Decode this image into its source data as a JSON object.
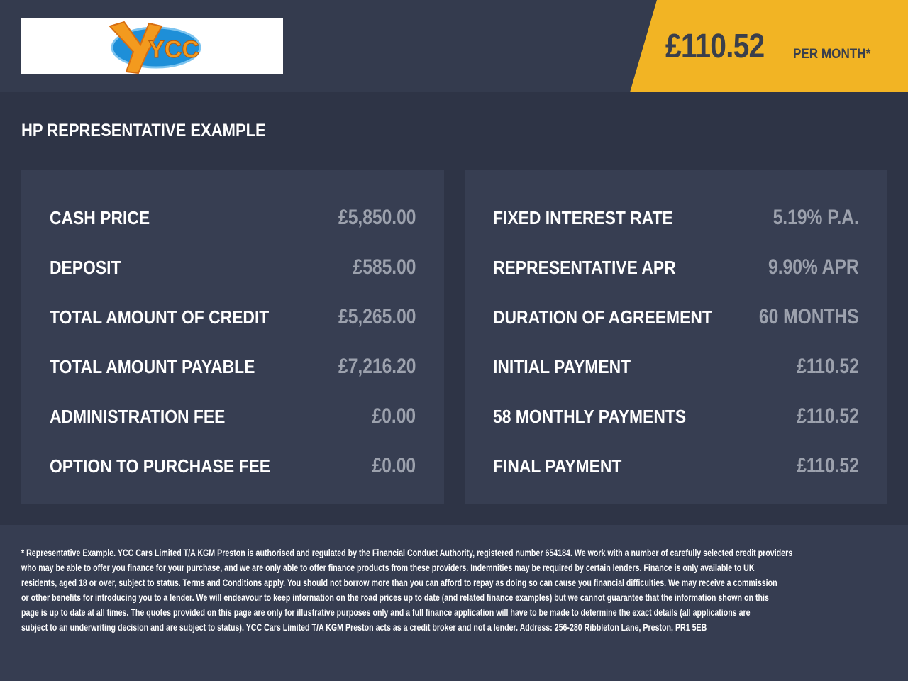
{
  "header": {
    "logo_text": "YCC",
    "price": "£110.52",
    "per_month": "PER MONTH*",
    "accent": "#f2b424"
  },
  "section_title": "HP REPRESENTATIVE EXAMPLE",
  "left": [
    {
      "label": "CASH PRICE",
      "value": "£5,850.00"
    },
    {
      "label": "DEPOSIT",
      "value": "£585.00"
    },
    {
      "label": "TOTAL AMOUNT OF CREDIT",
      "value": "£5,265.00"
    },
    {
      "label": "TOTAL AMOUNT PAYABLE",
      "value": "£7,216.20"
    },
    {
      "label": "ADMINISTRATION FEE",
      "value": "£0.00"
    },
    {
      "label": "OPTION TO PURCHASE FEE",
      "value": "£0.00"
    }
  ],
  "right": [
    {
      "label": "FIXED INTEREST RATE",
      "value": "5.19% P.A."
    },
    {
      "label": "REPRESENTATIVE APR",
      "value": "9.90% APR"
    },
    {
      "label": "DURATION OF AGREEMENT",
      "value": "60 MONTHS"
    },
    {
      "label": "INITIAL PAYMENT",
      "value": "£110.52"
    },
    {
      "label": "58 MONTHLY PAYMENTS",
      "value": "£110.52"
    },
    {
      "label": "FINAL PAYMENT",
      "value": "£110.52"
    }
  ],
  "disclaimer": [
    "* Representative Example. YCC Cars Limited T/A KGM Preston  is authorised and regulated by the Financial Conduct Authority, registered number 654184. We work with a number of carefully selected credit providers",
    "who may be able to offer you finance for your purchase, and we are only able to offer finance products from these providers. Indemnities may be required by certain lenders. Finance is only available to UK",
    "residents, aged 18 or over, subject to status. Terms and Conditions apply. You should not borrow more than you can afford to repay as doing so can cause you financial difficulties. We may receive a commission",
    "or other benefits for introducing you to a lender. We will endeavour to keep information on the road prices up to date (and related finance examples) but we cannot guarantee that the information shown on this",
    "page is up to date at all times. The quotes provided on this page are only for illustrative purposes only and a full finance application will have to be made to determine the exact details (all applications are",
    "subject to an underwriting decision and are subject to status). YCC Cars Limited T/A KGM Preston  acts as a credit broker and not a lender. Address: 256-280 Ribbleton Lane, Preston, PR1 5EB"
  ]
}
